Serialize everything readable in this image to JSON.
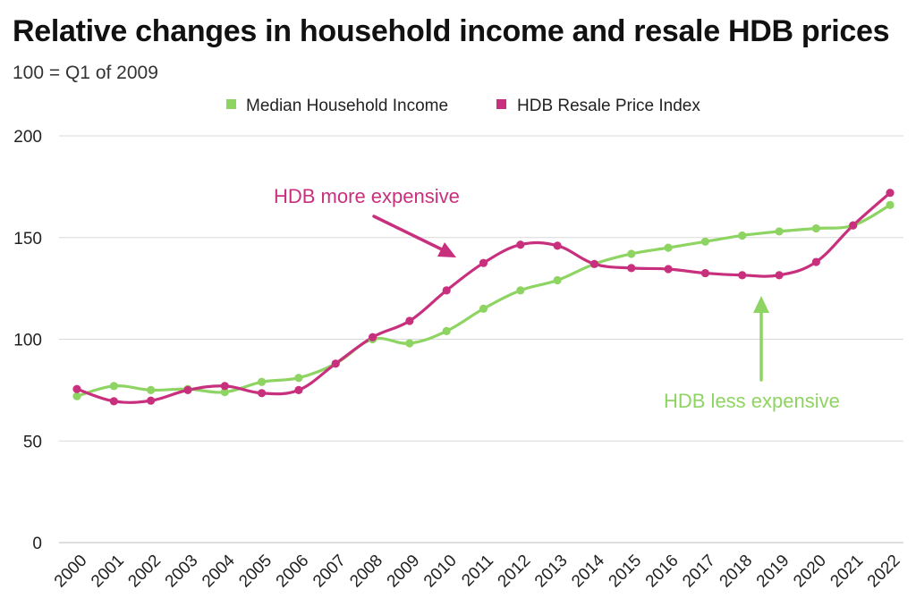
{
  "title": "Relative changes in household income and resale HDB prices",
  "subtitle": "100 = Q1 of 2009",
  "colors": {
    "income": "#8ed462",
    "hdb": "#c8307e",
    "grid": "#d9d9d9"
  },
  "chart_data": {
    "type": "line",
    "categories": [
      "2000",
      "2001",
      "2002",
      "2003",
      "2004",
      "2005",
      "2006",
      "2007",
      "2008",
      "2009",
      "2010",
      "2011",
      "2012",
      "2013",
      "2014",
      "2015",
      "2016",
      "2017",
      "2018",
      "2019",
      "2020",
      "2021",
      "2022"
    ],
    "ylim": [
      0,
      200
    ],
    "yticks": [
      "0",
      "50",
      "100",
      "150",
      "200"
    ],
    "grid": true,
    "legend": "top-center",
    "series": [
      {
        "name": "Median Household Income",
        "key": "income",
        "values": [
          72,
          77,
          75,
          75.5,
          74,
          79,
          81,
          88,
          100,
          98,
          104,
          115,
          124,
          129,
          137,
          142,
          145,
          148,
          151,
          153,
          154.5,
          156,
          166
        ]
      },
      {
        "name": "HDB Resale Price Index",
        "key": "hdb",
        "values": [
          75.5,
          69.5,
          69.8,
          75,
          77,
          73.5,
          75,
          88,
          101,
          109,
          124,
          137.5,
          146.5,
          146,
          137,
          135,
          134.5,
          132.5,
          131.5,
          131.5,
          138,
          156,
          172
        ]
      }
    ],
    "annotations": [
      {
        "text": "HDB more expensive",
        "key": "hdb"
      },
      {
        "text": "HDB less expensive",
        "key": "income"
      }
    ]
  }
}
